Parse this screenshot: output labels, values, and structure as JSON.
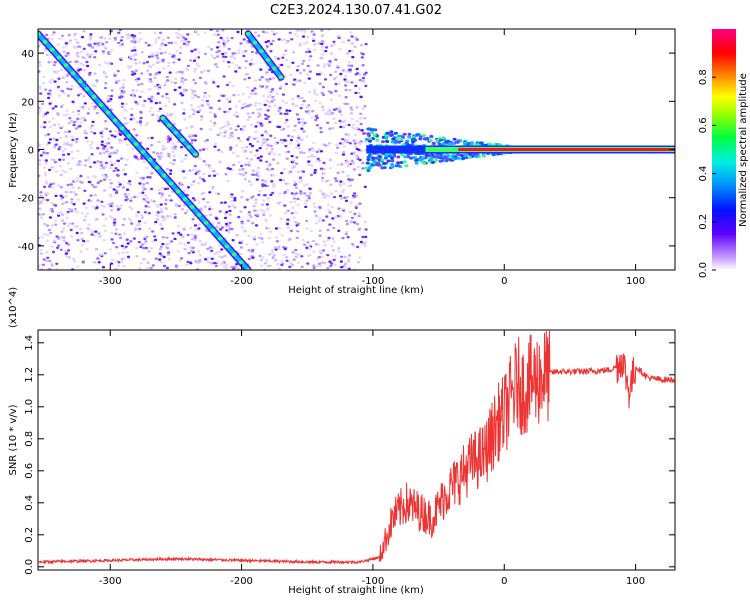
{
  "title": "C2E3.2024.130.07.41.G02",
  "chart_data": [
    {
      "type": "heatmap",
      "title": "C2E3.2024.130.07.41.G02",
      "xlabel": "Height of straight line (km)",
      "ylabel": "Frequency (Hz)",
      "xlim": [
        -355,
        130
      ],
      "ylim": [
        -50,
        50
      ],
      "xticks": [
        -300,
        -200,
        -100,
        0,
        100
      ],
      "yticks": [
        40,
        20,
        0,
        -20,
        -40
      ],
      "xtick_labels": [
        "-300",
        "-200",
        "-100",
        "0",
        "100"
      ],
      "ytick_labels": [
        "40",
        "20",
        "0",
        "-20",
        "-40"
      ],
      "colorbar": {
        "label": "Normalized spectral amplitude",
        "range": [
          0,
          1
        ],
        "ticks": [
          0.0,
          0.2,
          0.4,
          0.6,
          0.8
        ],
        "tick_labels": [
          "0.0",
          "0.2",
          "0.4",
          "0.6",
          "0.8"
        ],
        "colormap": [
          "#ffffff",
          "#a060ff",
          "#4000ff",
          "#0000ff",
          "#00c8ff",
          "#00ff60",
          "#80ff00",
          "#ffff00",
          "#ff8000",
          "#ff0000",
          "#ff0080"
        ]
      },
      "features": {
        "diagonal_tracks": [
          {
            "x": [
              -355,
              -195
            ],
            "y": [
              48,
              -50
            ]
          },
          {
            "x": [
              -195,
              -170
            ],
            "y": [
              48,
              30
            ]
          },
          {
            "x": [
              -260,
              -235
            ],
            "y": [
              13,
              -2
            ]
          }
        ],
        "zero_doppler_line": {
          "x": [
            -105,
            130
          ],
          "y": 0
        }
      }
    },
    {
      "type": "line",
      "xlabel": "Height of straight line (km)",
      "ylabel": "SNR (10 * v/v)",
      "y_multiplier": "(x10^4)",
      "xlim": [
        -355,
        130
      ],
      "ylim": [
        -0.02,
        1.48
      ],
      "xticks": [
        -300,
        -200,
        -100,
        0,
        100
      ],
      "yticks": [
        0.0,
        0.2,
        0.4,
        0.6,
        0.8,
        1.0,
        1.2,
        1.4
      ],
      "xtick_labels": [
        "-300",
        "-200",
        "-100",
        "0",
        "100"
      ],
      "ytick_labels": [
        "0.0",
        "0.2",
        "0.4",
        "0.6",
        "0.8",
        "1.0",
        "1.2",
        "1.4"
      ],
      "series": [
        {
          "color": "#ee3333",
          "x": [
            -355,
            -300,
            -250,
            -200,
            -150,
            -110,
            -95,
            -85,
            -75,
            -65,
            -55,
            -45,
            -35,
            -25,
            -15,
            -10,
            -5,
            0,
            5,
            10,
            15,
            20,
            30,
            40,
            60,
            80,
            85,
            90,
            95,
            100,
            110,
            120,
            130
          ],
          "y": [
            0.03,
            0.04,
            0.05,
            0.04,
            0.03,
            0.03,
            0.06,
            0.3,
            0.4,
            0.35,
            0.3,
            0.45,
            0.55,
            0.65,
            0.7,
            0.8,
            0.9,
            0.95,
            1.05,
            1.15,
            1.1,
            1.15,
            1.2,
            1.22,
            1.22,
            1.23,
            1.25,
            1.3,
            1.1,
            1.25,
            1.18,
            1.17,
            1.17
          ]
        }
      ]
    }
  ]
}
